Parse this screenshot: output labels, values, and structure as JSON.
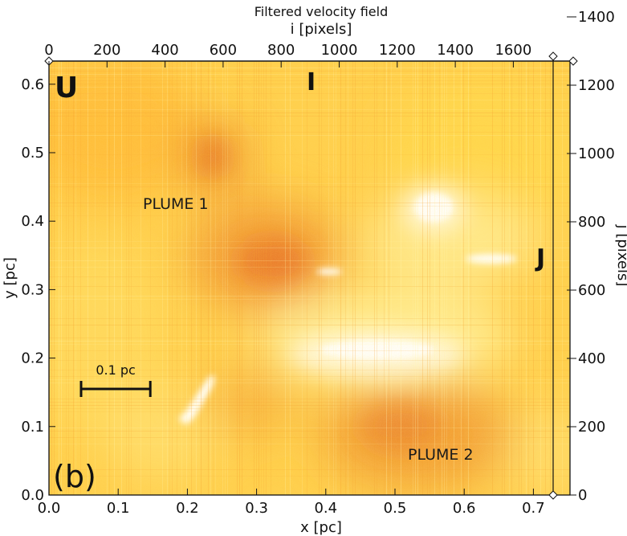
{
  "chart_data": {
    "type": "heatmap",
    "title": "Filtered velocity field",
    "xlabel": "x [pc]",
    "ylabel": "y [pc]",
    "x2label": "i [pixels]",
    "y2label": "j [pixels]",
    "xlim": [
      0.0,
      0.74
    ],
    "ylim": [
      0.0,
      0.63
    ],
    "x2lim": [
      0,
      1740
    ],
    "y2lim": [
      0,
      1440
    ],
    "xticks": [
      0.0,
      0.1,
      0.2,
      0.3,
      0.4,
      0.5,
      0.6,
      0.7
    ],
    "xtick_labels": [
      "0.0",
      "0.1",
      "0.2",
      "0.3",
      "0.4",
      "0.5",
      "0.6",
      "0.7"
    ],
    "yticks": [
      0.0,
      0.1,
      0.2,
      0.3,
      0.4,
      0.5,
      0.6
    ],
    "ytick_labels": [
      "0.0",
      "0.1",
      "0.2",
      "0.3",
      "0.4",
      "0.5",
      "0.6"
    ],
    "x2ticks": [
      0,
      200,
      400,
      600,
      800,
      1000,
      1200,
      1400,
      1600
    ],
    "x2tick_labels": [
      "0",
      "200",
      "400",
      "600",
      "800",
      "1000",
      "1200",
      "1400",
      "1600"
    ],
    "y2ticks": [
      0,
      200,
      400,
      600,
      800,
      1000,
      1200,
      1400
    ],
    "y2tick_labels": [
      "0",
      "200",
      "400",
      "600",
      "800",
      "1000",
      "1200",
      "1400"
    ],
    "colormap": [
      "#ffffff",
      "#fff27a",
      "#ffd94a",
      "#ffb733",
      "#f28a26",
      "#e0601c"
    ],
    "annotations": {
      "panel": "(b)",
      "corner_u": "U",
      "marker_i": "I",
      "marker_j": "J",
      "plume1": "PLUME 1",
      "plume2": "PLUME 2",
      "scalebar_label": "0.1 pc",
      "scalebar_length_pc": 0.1
    }
  }
}
